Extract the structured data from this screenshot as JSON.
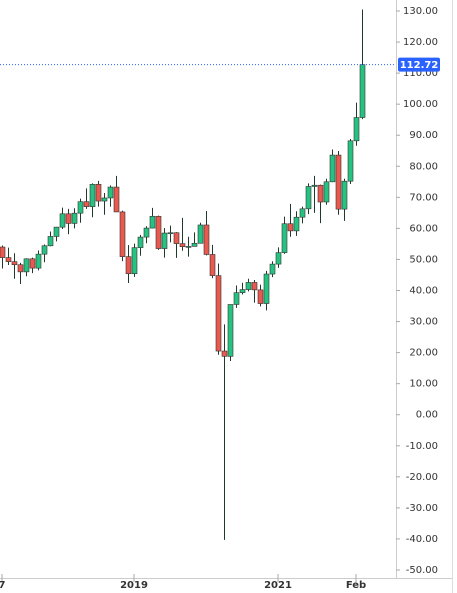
{
  "chart_data": {
    "type": "candlestick",
    "categories": [
      "7",
      null,
      null,
      null,
      null,
      null,
      null,
      null,
      null,
      null,
      null,
      null,
      null,
      null,
      null,
      null,
      null,
      null,
      null,
      null,
      null,
      null,
      "2019",
      null,
      null,
      null,
      null,
      null,
      null,
      null,
      null,
      null,
      null,
      null,
      null,
      null,
      null,
      null,
      null,
      null,
      null,
      null,
      null,
      null,
      null,
      null,
      "2021",
      null,
      null,
      null,
      null,
      null,
      null,
      null,
      null,
      null,
      null,
      null,
      null,
      "Feb",
      null
    ],
    "open": [
      54,
      50.6,
      49.3,
      48.3,
      46,
      50.2,
      47.2,
      51.7,
      54.4,
      57.4,
      60.4,
      64.7,
      61.6,
      64.9,
      68.6,
      67,
      74.2,
      68.8,
      69.8,
      73.3,
      65.3,
      50.9,
      45.4,
      53.8,
      57.2,
      60.1,
      63.9,
      53.5,
      58.5,
      58.6,
      55.1,
      54.1,
      54.2,
      55.2,
      61.1,
      51.6,
      44.8,
      20.5,
      18.8,
      35.5,
      39.3,
      40.3,
      42.6,
      40.2,
      35.8,
      45.3,
      48.5,
      52.2,
      61.5,
      59.2,
      63.6,
      66.3,
      73.5,
      73.9,
      68.5,
      75,
      83.6,
      66.2,
      75.2,
      88.2,
      95.7
    ],
    "high": [
      54.5,
      53.8,
      52,
      48.9,
      50.4,
      50.6,
      52.9,
      54.8,
      59,
      60.5,
      66.7,
      66.3,
      66.5,
      69.6,
      72.9,
      74.5,
      75.3,
      71.4,
      73.8,
      76.9,
      65.7,
      54.6,
      55.1,
      57.9,
      60.7,
      66.6,
      64.1,
      60.1,
      60.9,
      58.8,
      63.4,
      57.3,
      58.7,
      61.8,
      65.6,
      54.7,
      48.7,
      29.1,
      35.5,
      41.6,
      42.5,
      43.8,
      43.4,
      41.9,
      46.3,
      49.4,
      53.9,
      63.8,
      67.9,
      65.5,
      67,
      74.5,
      76.9,
      74.1,
      76,
      85.4,
      84.9,
      76,
      88.8,
      100.5,
      130.5
    ],
    "low": [
      47.1,
      48.2,
      43.8,
      42.1,
      44.6,
      45.6,
      46.5,
      49.1,
      54.2,
      55.8,
      59.8,
      58.1,
      60,
      61.8,
      66.3,
      63.6,
      67,
      64.4,
      67,
      65.3,
      49.4,
      42.4,
      44.4,
      51.2,
      55.2,
      60,
      53.1,
      50.6,
      55.5,
      50.5,
      52.8,
      50.9,
      54.2,
      55.3,
      51.3,
      44,
      19.3,
      -40.3,
      17.3,
      34.4,
      38.7,
      39.7,
      36.1,
      34.9,
      33.6,
      44.3,
      47.3,
      51.8,
      57.3,
      57.6,
      61.6,
      64.6,
      65,
      61.7,
      67.6,
      74.9,
      64.4,
      62.4,
      74.3,
      86.6,
      95.2
    ],
    "close": [
      50.6,
      49.3,
      48.3,
      46,
      50.2,
      47.2,
      51.7,
      54.4,
      57.4,
      60.4,
      64.7,
      61.6,
      64.9,
      68.6,
      67,
      74.2,
      68.8,
      69.8,
      73.3,
      65.3,
      50.9,
      45.4,
      53.8,
      57.2,
      60.1,
      63.9,
      53.5,
      58.5,
      58.6,
      55.1,
      54.1,
      54.2,
      55.2,
      61.1,
      51.6,
      44.8,
      20.5,
      18.8,
      35.5,
      39.3,
      40.3,
      42.6,
      40.2,
      35.8,
      45.3,
      48.5,
      52.2,
      61.5,
      59.2,
      63.6,
      66.3,
      73.5,
      73.9,
      68.5,
      75,
      83.6,
      66.2,
      75.2,
      88.2,
      95.7,
      112.72
    ],
    "up_color": "#26c281",
    "down_color": "#e8594f",
    "last_price": 112.72,
    "last_price_color": "#2962ff",
    "ylim": [
      -50,
      130
    ],
    "yticks": [
      {
        "value": 130,
        "label": "130.00"
      },
      {
        "value": 120,
        "label": "120.00"
      },
      {
        "value": 110,
        "label": "110.00"
      },
      {
        "value": 100,
        "label": "100.00"
      },
      {
        "value": 90,
        "label": "90.00"
      },
      {
        "value": 80,
        "label": "80.00"
      },
      {
        "value": 70,
        "label": "70.00"
      },
      {
        "value": 60,
        "label": "60.00"
      },
      {
        "value": 50,
        "label": "50.00"
      },
      {
        "value": 40,
        "label": "40.00"
      },
      {
        "value": 30,
        "label": "30.00"
      },
      {
        "value": 20,
        "label": "20.00"
      },
      {
        "value": 10,
        "label": "10.00"
      },
      {
        "value": 0,
        "label": "0.00"
      },
      {
        "value": -10,
        "label": "-10.00"
      },
      {
        "value": -20,
        "label": "-20.00"
      },
      {
        "value": -30,
        "label": "-30.00"
      },
      {
        "value": -40,
        "label": "-40.00"
      },
      {
        "value": -50,
        "label": "-50.00"
      }
    ]
  }
}
